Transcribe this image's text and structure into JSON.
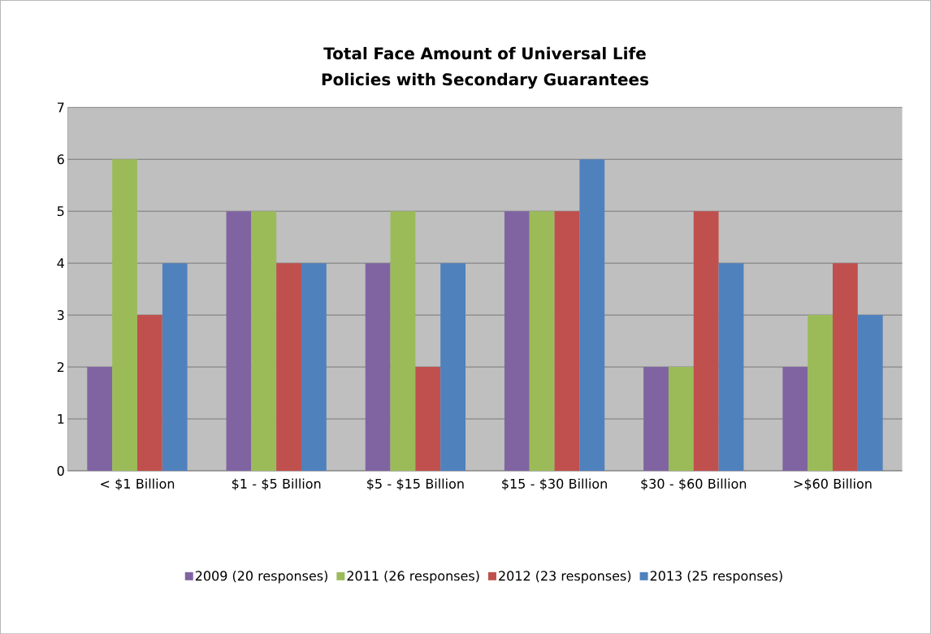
{
  "chart_data": {
    "type": "bar",
    "title": "Total Face Amount of Universal Life Policies with Secondary Guarantees",
    "categories": [
      "< $1 Billion",
      "$1 - $5 Billion",
      "$5 - $15  Billion",
      "$15 - $30 Billion",
      "$30 - $60 Billion",
      ">$60 Billion"
    ],
    "series": [
      {
        "name": "2009 (20 responses)",
        "color": "#8064a2",
        "values": [
          2,
          5,
          4,
          5,
          2,
          2
        ]
      },
      {
        "name": "2011 (26 responses)",
        "color": "#9bbb59",
        "values": [
          6,
          5,
          5,
          5,
          2,
          3
        ]
      },
      {
        "name": "2012 (23 responses)",
        "color": "#c0504d",
        "values": [
          3,
          4,
          2,
          5,
          5,
          4
        ]
      },
      {
        "name": "2013 (25 responses)",
        "color": "#4f81bd",
        "values": [
          4,
          4,
          4,
          6,
          4,
          3
        ]
      }
    ],
    "ylim": [
      0,
      7
    ],
    "yticks": [
      0,
      1,
      2,
      3,
      4,
      5,
      6,
      7
    ],
    "grid": "y",
    "legend": "bottom"
  }
}
